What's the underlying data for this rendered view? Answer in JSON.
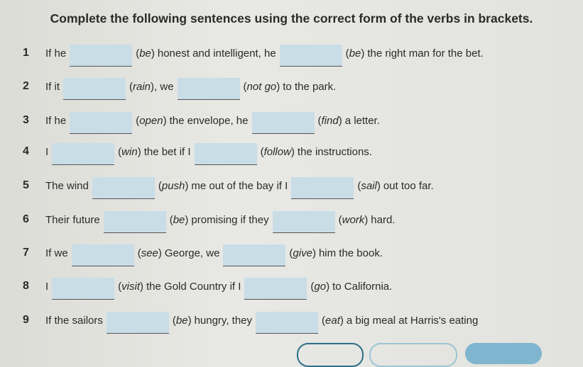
{
  "title": "Complete the following sentences using the correct form of the verbs in brackets.",
  "items": [
    {
      "num": "1",
      "a": "If he",
      "v1": "be",
      "b": "honest and intelligent, he",
      "v2": "be",
      "c": "the right man for the bet."
    },
    {
      "num": "2",
      "a": "If it",
      "v1": "rain",
      "b": ", we",
      "v2": "not go",
      "c": "to the park."
    },
    {
      "num": "3",
      "a": "If he",
      "v1": "open",
      "b": "the envelope, he",
      "v2": "find",
      "c": "a letter."
    },
    {
      "num": "4",
      "a": "I",
      "v1": "win",
      "b": "the bet if I",
      "v2": "follow",
      "c": "the instructions."
    },
    {
      "num": "5",
      "a": "The wind",
      "v1": "push",
      "b": "me out of the bay if I",
      "v2": "sail",
      "c": "out too far."
    },
    {
      "num": "6",
      "a": "Their future",
      "v1": "be",
      "b": "promising if they",
      "v2": "work",
      "c": "hard."
    },
    {
      "num": "7",
      "a": "If we",
      "v1": "see",
      "b": "George, we",
      "v2": "give",
      "c": "him the book."
    },
    {
      "num": "8",
      "a": "I",
      "v1": "visit",
      "b": "the Gold Country if I",
      "v2": "go",
      "c": "to California."
    },
    {
      "num": "9",
      "a": "If the sailors",
      "v1": "be",
      "b": "hungry, they",
      "v2": "eat",
      "c": "a big meal at Harris's eating"
    }
  ],
  "colors": {
    "blank": "#c9dde7",
    "button_primary": "#7fb5cf",
    "button_outline": "#2e6f8a"
  }
}
